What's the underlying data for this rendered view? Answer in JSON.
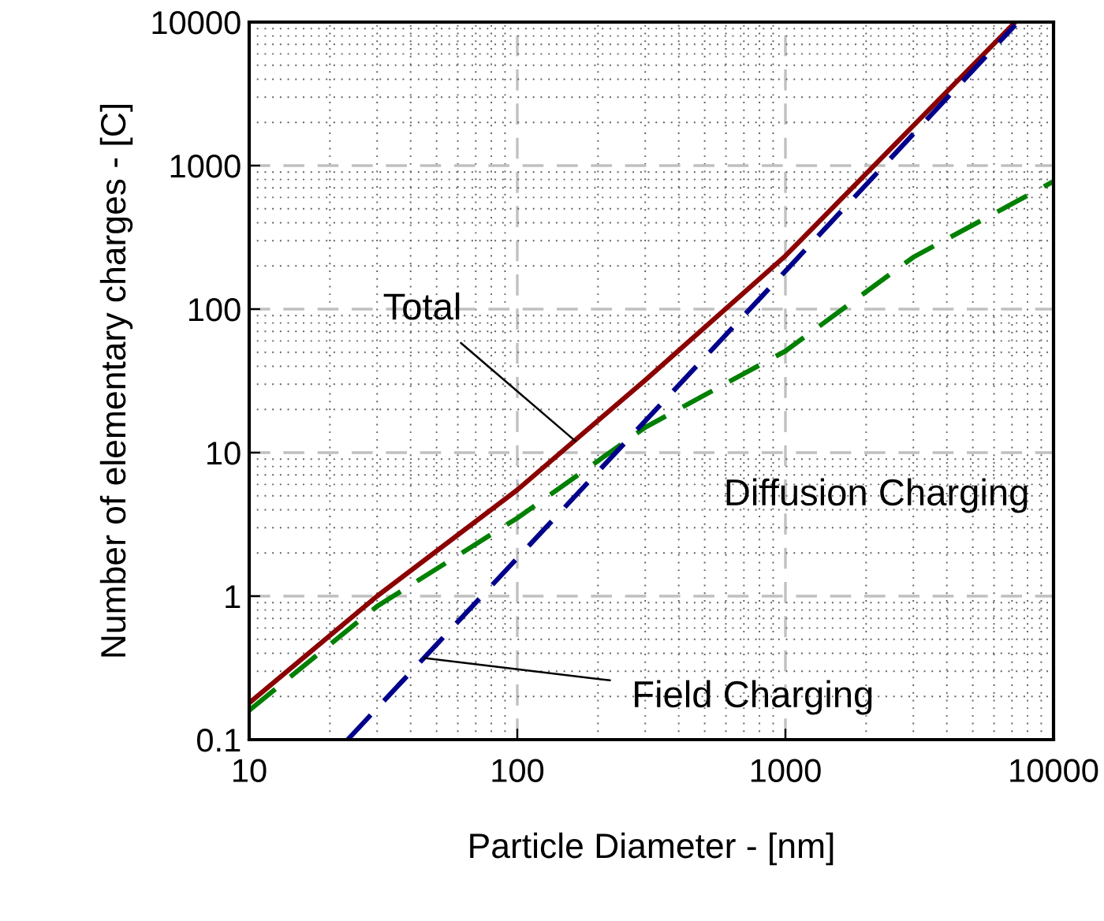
{
  "chart_data": {
    "type": "line",
    "xlabel": "Particle Diameter - [nm]",
    "ylabel": "Number of elementary charges - [C]",
    "log": "xy",
    "grid": true,
    "marker": "none",
    "xlim": [
      10,
      10000
    ],
    "xticks": [
      10,
      100,
      1000,
      10000
    ],
    "ylim": [
      0.1,
      10000
    ],
    "yticks": [
      0.1,
      1,
      10,
      100,
      1000,
      10000
    ],
    "series": [
      {
        "x": [
          10,
          30,
          100,
          300,
          1000,
          3000,
          7200
        ],
        "values": [
          0.18,
          1.0,
          5.5,
          32,
          235,
          1900,
          10000
        ],
        "color": "#8b0000",
        "line_style": "solid"
      },
      {
        "x": [
          10,
          30,
          100,
          300,
          1000,
          3000,
          10000
        ],
        "values": [
          0.16,
          0.85,
          3.5,
          15,
          51,
          230,
          776
        ],
        "color": "#008000",
        "line_style": "dashed"
      },
      {
        "x": [
          23.3,
          50,
          100,
          300,
          1000,
          3000,
          7200
        ],
        "values": [
          0.1,
          0.46,
          1.84,
          16.6,
          184,
          1660,
          9550
        ],
        "color": "#00008b",
        "line_style": "dashed"
      }
    ],
    "annotations": [
      {
        "text": "Total",
        "x": 165,
        "y": 12
      },
      "Diffusion Charging",
      {
        "text": "Field Charging",
        "x": 45,
        "y": 0.37
      }
    ]
  }
}
